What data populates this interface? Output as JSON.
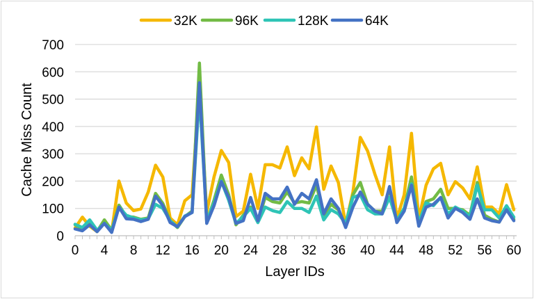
{
  "chart_data": {
    "type": "line",
    "title": "",
    "xlabel": "Layer IDs",
    "ylabel": "Cache Miss Count",
    "xlim": [
      0,
      60
    ],
    "ylim": [
      0,
      700
    ],
    "x_ticks": [
      0,
      4,
      8,
      12,
      16,
      20,
      24,
      28,
      32,
      36,
      40,
      44,
      48,
      52,
      56,
      60
    ],
    "y_ticks": [
      0,
      100,
      200,
      300,
      400,
      500,
      600,
      700
    ],
    "grid": "horizontal",
    "legend_position": "top",
    "x": [
      0,
      1,
      2,
      3,
      4,
      5,
      6,
      7,
      8,
      9,
      10,
      11,
      12,
      13,
      14,
      15,
      16,
      17,
      18,
      19,
      20,
      21,
      22,
      23,
      24,
      25,
      26,
      27,
      28,
      29,
      30,
      31,
      32,
      33,
      34,
      35,
      36,
      37,
      38,
      39,
      40,
      41,
      42,
      43,
      44,
      45,
      46,
      47,
      48,
      49,
      50,
      51,
      52,
      53,
      54,
      55,
      56,
      57,
      58,
      59,
      60
    ],
    "series": [
      {
        "name": "32K",
        "color": "#f5b800",
        "values": [
          28,
          68,
          35,
          15,
          55,
          15,
          200,
          120,
          92,
          98,
          160,
          258,
          215,
          65,
          40,
          128,
          150,
          555,
          85,
          215,
          312,
          268,
          70,
          90,
          225,
          100,
          260,
          260,
          248,
          325,
          220,
          285,
          245,
          398,
          170,
          255,
          195,
          40,
          160,
          360,
          310,
          225,
          150,
          325,
          60,
          150,
          375,
          60,
          185,
          245,
          265,
          150,
          198,
          175,
          135,
          252,
          105,
          105,
          80,
          187,
          95
        ]
      },
      {
        "name": "96K",
        "color": "#72bb45",
        "values": [
          40,
          25,
          50,
          15,
          58,
          20,
          112,
          70,
          68,
          60,
          65,
          155,
          118,
          55,
          30,
          70,
          90,
          632,
          50,
          130,
          222,
          150,
          40,
          75,
          105,
          55,
          140,
          125,
          120,
          160,
          120,
          125,
          120,
          185,
          75,
          115,
          95,
          40,
          150,
          195,
          115,
          90,
          90,
          170,
          55,
          100,
          215,
          45,
          125,
          135,
          170,
          100,
          100,
          95,
          75,
          195,
          75,
          60,
          50,
          105,
          60
        ]
      },
      {
        "name": "128K",
        "color": "#2ec4b6",
        "values": [
          42,
          30,
          58,
          20,
          45,
          20,
          105,
          75,
          65,
          58,
          62,
          115,
          100,
          55,
          32,
          72,
          85,
          520,
          55,
          120,
          200,
          130,
          45,
          70,
          100,
          48,
          105,
          92,
          85,
          125,
          100,
          100,
          85,
          145,
          58,
          95,
          80,
          45,
          140,
          150,
          95,
          80,
          80,
          140,
          55,
          100,
          190,
          48,
          120,
          110,
          140,
          80,
          105,
          90,
          70,
          185,
          95,
          95,
          65,
          110,
          68
        ]
      },
      {
        "name": "64K",
        "color": "#4472c4",
        "values": [
          25,
          18,
          40,
          15,
          45,
          12,
          105,
          62,
          60,
          52,
          60,
          145,
          110,
          48,
          33,
          70,
          85,
          560,
          45,
          110,
          198,
          140,
          45,
          55,
          140,
          55,
          155,
          135,
          135,
          178,
          115,
          155,
          135,
          205,
          80,
          135,
          100,
          30,
          105,
          160,
          115,
          90,
          80,
          180,
          48,
          90,
          185,
          35,
          105,
          115,
          140,
          65,
          100,
          85,
          60,
          135,
          65,
          55,
          50,
          95,
          55
        ]
      }
    ]
  }
}
